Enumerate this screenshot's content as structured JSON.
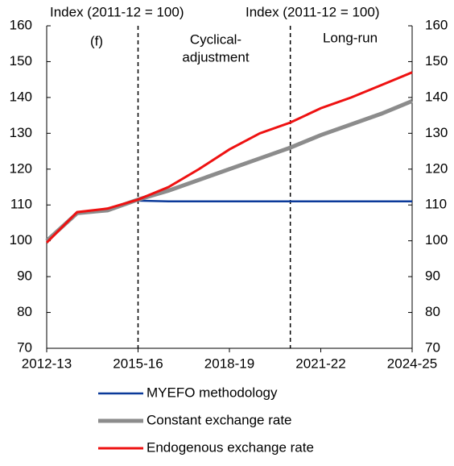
{
  "chart_data": {
    "type": "line",
    "y_label": "Index (2011-12 = 100)",
    "y2_label": "Index (2011-12 = 100)",
    "annotations": [
      "(f)",
      "Cyclical-",
      "adjustment",
      "Long-run"
    ],
    "categories": [
      "2012-13",
      null,
      null,
      "2015-16",
      null,
      null,
      "2018-19",
      null,
      null,
      "2021-22",
      null,
      null,
      "2024-25"
    ],
    "series": [
      {
        "name": "MYEFO methodology",
        "color": "#0b3a9a",
        "values": [
          100,
          108,
          108.8,
          111.2,
          111,
          111,
          111,
          111,
          111,
          111,
          111,
          111,
          111
        ]
      },
      {
        "name": "Constant exchange rate",
        "color": "#8c8c8c",
        "values": [
          100,
          107.7,
          108.5,
          111.5,
          114,
          117,
          120,
          123,
          126,
          129.5,
          132.5,
          135.5,
          139
        ]
      },
      {
        "name": "Endogenous exchange rate",
        "color": "#ee1111",
        "values": [
          99.5,
          108,
          109,
          111.5,
          115,
          120,
          125.5,
          130,
          133,
          137,
          140,
          143.5,
          147
        ]
      }
    ],
    "ylim": [
      70,
      160
    ],
    "yticks": [
      70,
      80,
      90,
      100,
      110,
      120,
      130,
      140,
      150,
      160
    ],
    "y2lim": [
      70,
      160
    ],
    "y2ticks": [
      70,
      80,
      90,
      100,
      110,
      120,
      130,
      140,
      150,
      160
    ]
  }
}
